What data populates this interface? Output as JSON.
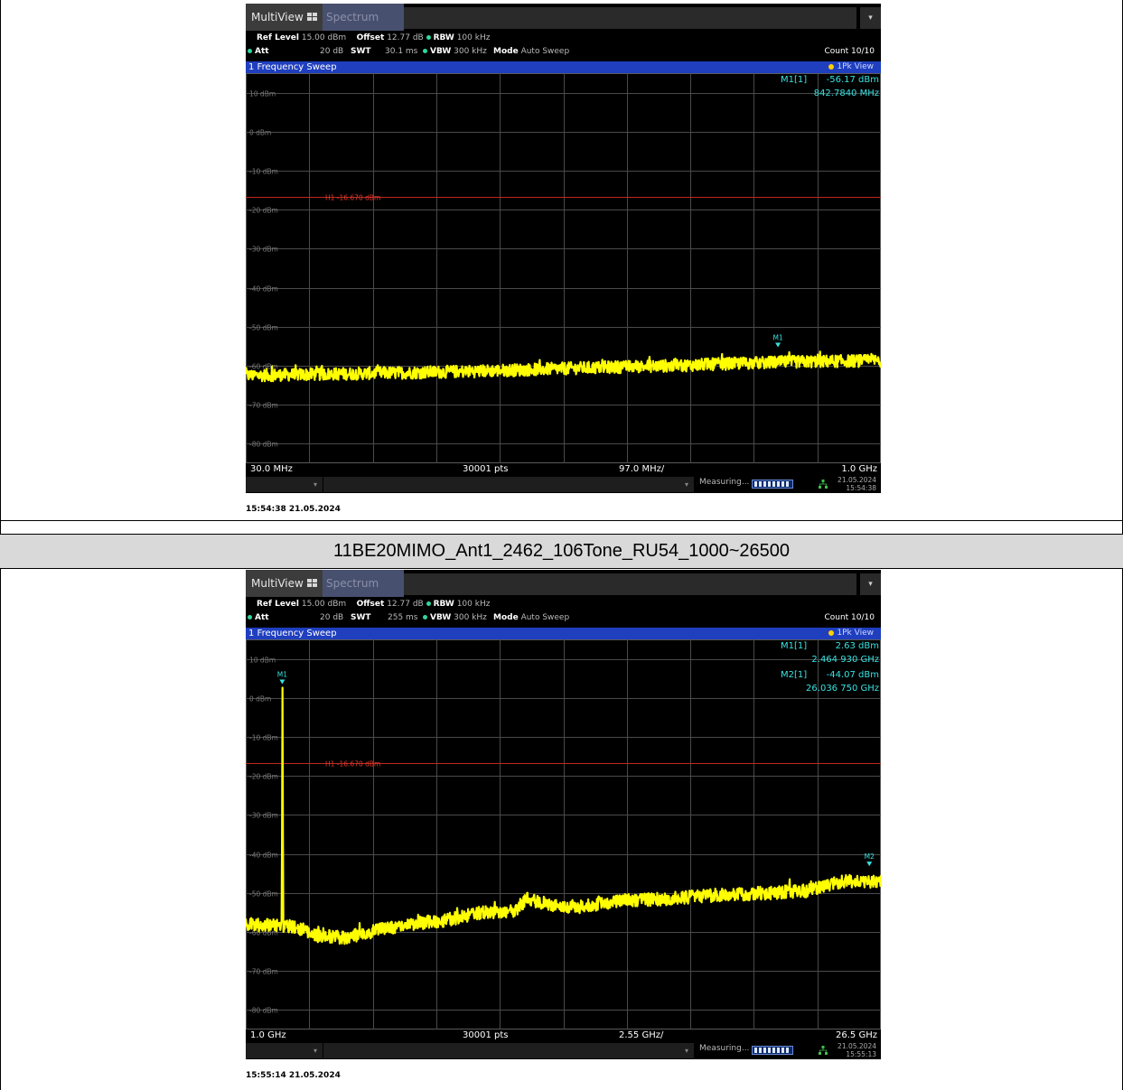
{
  "caption": "11BE20MIMO_Ant1_2462_106Tone_RU54_1000~26500",
  "colors": {
    "trace": "#ffff00",
    "grid": "#4a4a4a",
    "limit": "#c0281e",
    "marker": "#37e3e3",
    "sweep_bar": "#1f3fbf"
  },
  "chart_data": [
    {
      "type": "line",
      "tabs": [
        "MultiView",
        "Spectrum"
      ],
      "settings": {
        "ref_level_label": "Ref Level",
        "ref_level": "15.00 dBm",
        "offset_label": "Offset",
        "offset": "12.77 dB",
        "rbw_label": "RBW",
        "rbw": "100 kHz",
        "att_label": "Att",
        "att": "20 dB",
        "swt_label": "SWT",
        "swt": "30.1 ms",
        "vbw_label": "VBW",
        "vbw": "300 kHz",
        "mode_label": "Mode",
        "mode": "Auto Sweep",
        "count": "Count 10/10"
      },
      "sweep_title": "1 Frequency Sweep",
      "trace_label": "1Pk View",
      "y_ticks": [
        "10 dBm",
        "0 dBm",
        "-10 dBm",
        "-20 dBm",
        "-30 dBm",
        "-40 dBm",
        "-50 dBm",
        "-60 dBm",
        "-70 dBm",
        "-80 dBm"
      ],
      "y_tick_values": [
        10,
        0,
        -10,
        -20,
        -30,
        -40,
        -50,
        -60,
        -70,
        -80
      ],
      "ylim": [
        -85,
        15
      ],
      "x_start_label": "30.0 MHz",
      "x_stop_label": "1.0 GHz",
      "points_label": "30001 pts",
      "div_label": "97.0 MHz/",
      "xlim": [
        0.03,
        1.0
      ],
      "limit_line": {
        "label": "H1 -16.670 dBm",
        "value": -16.67
      },
      "trace": {
        "x": [
          0.03,
          0.1,
          0.2,
          0.3,
          0.4,
          0.5,
          0.6,
          0.7,
          0.8,
          0.9,
          1.0
        ],
        "y": [
          -62.5,
          -62.3,
          -62.0,
          -61.7,
          -61.3,
          -60.8,
          -60.3,
          -59.9,
          -59.3,
          -58.9,
          -58.7
        ],
        "noise_amplitude": 1.6,
        "spikes": []
      },
      "markers": [
        {
          "label": "M1",
          "x": 0.8428,
          "y": -56.17
        }
      ],
      "readouts": [
        {
          "name": "M1[1]",
          "value": "-56.17 dBm",
          "freq": "842.7840 MHz"
        }
      ],
      "status": {
        "measuring": "Measuring...",
        "date": "21.05.2024",
        "time": "15:54:38"
      },
      "timestamp": "15:54:38  21.05.2024"
    },
    {
      "type": "line",
      "tabs": [
        "MultiView",
        "Spectrum"
      ],
      "settings": {
        "ref_level_label": "Ref Level",
        "ref_level": "15.00 dBm",
        "offset_label": "Offset",
        "offset": "12.77 dB",
        "rbw_label": "RBW",
        "rbw": "100 kHz",
        "att_label": "Att",
        "att": "20 dB",
        "swt_label": "SWT",
        "swt": "255 ms",
        "vbw_label": "VBW",
        "vbw": "300 kHz",
        "mode_label": "Mode",
        "mode": "Auto Sweep",
        "count": "Count 10/10"
      },
      "sweep_title": "1 Frequency Sweep",
      "trace_label": "1Pk View",
      "y_ticks": [
        "10 dBm",
        "0 dBm",
        "-10 dBm",
        "-20 dBm",
        "-30 dBm",
        "-40 dBm",
        "-50 dBm",
        "-60 dBm",
        "-70 dBm",
        "-80 dBm"
      ],
      "y_tick_values": [
        10,
        0,
        -10,
        -20,
        -30,
        -40,
        -50,
        -60,
        -70,
        -80
      ],
      "ylim": [
        -85,
        15
      ],
      "x_start_label": "1.0 GHz",
      "x_stop_label": "26.5 GHz",
      "points_label": "30001 pts",
      "div_label": "2.55 GHz/",
      "xlim": [
        1.0,
        26.5
      ],
      "limit_line": {
        "label": "H1 -16.670 dBm",
        "value": -16.67
      },
      "trace": {
        "x": [
          1.0,
          2.3,
          2.8,
          3.8,
          4.2,
          5.0,
          6.0,
          7.5,
          9.0,
          10.5,
          11.8,
          12.3,
          13.5,
          14.5,
          16.0,
          18.0,
          20.0,
          22.0,
          23.5,
          25.0,
          26.5
        ],
        "y": [
          -58.0,
          -58.5,
          -58.5,
          -61.0,
          -61.0,
          -61.5,
          -60.0,
          -58.0,
          -57.0,
          -55.0,
          -54.5,
          -51.5,
          -53.5,
          -53.5,
          -52.0,
          -51.5,
          -50.5,
          -50.0,
          -49.5,
          -47.0,
          -47.0
        ],
        "noise_amplitude": 1.7,
        "spikes": [
          {
            "x": 2.465,
            "y": 2.63
          },
          {
            "x": 4.1,
            "y": -59.0
          },
          {
            "x": 12.25,
            "y": -50.0
          }
        ]
      },
      "markers": [
        {
          "label": "M1",
          "x": 2.4649,
          "y": 2.63
        },
        {
          "label": "M2",
          "x": 26.0368,
          "y": -44.07
        }
      ],
      "readouts": [
        {
          "name": "M1[1]",
          "value": "2.63 dBm",
          "freq": "2.464 930 GHz"
        },
        {
          "name": "M2[1]",
          "value": "-44.07 dBm",
          "freq": "26.036 750 GHz"
        }
      ],
      "status": {
        "measuring": "Measuring...",
        "date": "21.05.2024",
        "time": "15:55:13"
      },
      "timestamp": "15:55:14  21.05.2024"
    }
  ]
}
